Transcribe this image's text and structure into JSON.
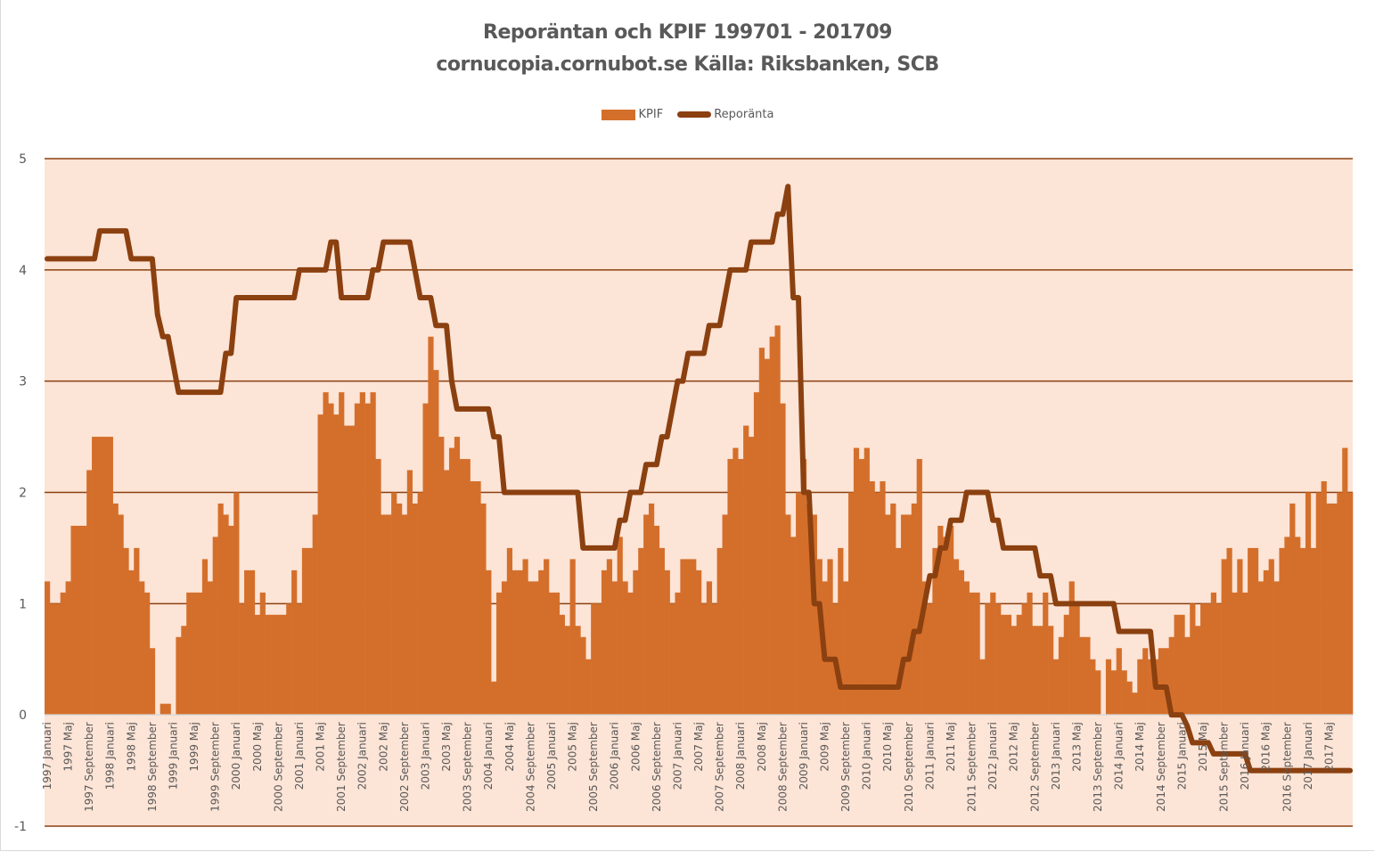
{
  "chart_data": {
    "type": "bar+line",
    "title": "Reporäntan och KPIF 199701 - 201709",
    "subtitle": "cornucopia.cornubot.se Källa: Riksbanken, SCB",
    "legend": [
      "KPIF",
      "Reporänta"
    ],
    "legend_position": "top",
    "xlabel": "",
    "ylabel": "",
    "ylim": [
      -1,
      5
    ],
    "yticks": [
      5,
      4,
      3,
      2,
      1,
      0,
      -1
    ],
    "grid": true,
    "start_month": "1997-01",
    "end_month": "2017-09",
    "colors": {
      "kpif": "#D46F2B",
      "repo": "#8B4010",
      "plot_bg": "#FCE4D6",
      "grid": "#8B4010"
    },
    "xtick_labels": [
      "1997 Januari",
      "1997 Maj",
      "1997 September",
      "1998 Januari",
      "1998 Maj",
      "1998 September",
      "1999 Januari",
      "1999 Maj",
      "1999 September",
      "2000 Januari",
      "2000 Maj",
      "2000 September",
      "2001 Januari",
      "2001 Maj",
      "2001 September",
      "2002 Januari",
      "2002 Maj",
      "2002 September",
      "2003 Januari",
      "2003 Maj",
      "2003 September",
      "2004 Januari",
      "2004 Maj",
      "2004 September",
      "2005 Januari",
      "2005 Maj",
      "2005 September",
      "2006 Januari",
      "2006 Maj",
      "2006 September",
      "2007 Januari",
      "2007 Maj",
      "2007 September",
      "2008 Januari",
      "2008 Maj",
      "2008 September",
      "2009 Januari",
      "2009 Maj",
      "2009 September",
      "2010 Januari",
      "2010 Maj",
      "2010 September",
      "2011 Januari",
      "2011 Maj",
      "2011 September",
      "2012 Januari",
      "2012 Maj",
      "2012 September",
      "2013 Januari",
      "2013 Maj",
      "2013 September",
      "2014 Januari",
      "2014 Maj",
      "2014 September",
      "2015 Januari",
      "2015 Maj",
      "2015 September",
      "2016 Januari",
      "2016 Maj",
      "2016 September",
      "2017 Januari",
      "2017 Maj"
    ],
    "series": [
      {
        "name": "KPIF",
        "type": "bar",
        "values": [
          1.2,
          1.0,
          1.0,
          1.1,
          1.2,
          1.7,
          1.7,
          1.7,
          2.2,
          2.5,
          2.5,
          2.5,
          2.5,
          1.9,
          1.8,
          1.5,
          1.3,
          1.5,
          1.2,
          1.1,
          0.6,
          0.0,
          0.1,
          0.1,
          0.0,
          0.7,
          0.8,
          1.1,
          1.1,
          1.1,
          1.4,
          1.2,
          1.6,
          1.9,
          1.8,
          1.7,
          2.0,
          1.0,
          1.3,
          1.3,
          0.9,
          1.1,
          0.9,
          0.9,
          0.9,
          0.9,
          1.0,
          1.3,
          1.0,
          1.5,
          1.5,
          1.8,
          2.7,
          2.9,
          2.8,
          2.7,
          2.9,
          2.6,
          2.6,
          2.8,
          2.9,
          2.8,
          2.9,
          2.3,
          1.8,
          1.8,
          2.0,
          1.9,
          1.8,
          2.2,
          1.9,
          2.0,
          2.8,
          3.4,
          3.1,
          2.5,
          2.2,
          2.4,
          2.5,
          2.3,
          2.3,
          2.1,
          2.1,
          1.9,
          1.3,
          0.3,
          1.1,
          1.2,
          1.5,
          1.3,
          1.3,
          1.4,
          1.2,
          1.2,
          1.3,
          1.4,
          1.1,
          1.1,
          0.9,
          0.8,
          1.4,
          0.8,
          0.7,
          0.5,
          1.0,
          1.0,
          1.3,
          1.4,
          1.2,
          1.6,
          1.2,
          1.1,
          1.3,
          1.5,
          1.8,
          1.9,
          1.7,
          1.5,
          1.3,
          1.0,
          1.1,
          1.4,
          1.4,
          1.4,
          1.3,
          1.0,
          1.2,
          1.0,
          1.5,
          1.8,
          2.3,
          2.4,
          2.3,
          2.6,
          2.5,
          2.9,
          3.3,
          3.2,
          3.4,
          3.5,
          2.8,
          1.8,
          1.6,
          2.0,
          2.3,
          1.9,
          1.8,
          1.4,
          1.2,
          1.4,
          1.0,
          1.5,
          1.2,
          2.0,
          2.4,
          2.3,
          2.4,
          2.1,
          2.0,
          2.1,
          1.8,
          1.9,
          1.5,
          1.8,
          1.8,
          1.9,
          2.3,
          1.2,
          1.0,
          1.5,
          1.7,
          1.6,
          1.7,
          1.4,
          1.3,
          1.2,
          1.1,
          1.1,
          0.5,
          1.0,
          1.1,
          1.0,
          0.9,
          0.9,
          0.8,
          0.9,
          1.0,
          1.1,
          0.8,
          0.8,
          1.1,
          0.8,
          0.5,
          0.7,
          0.9,
          1.2,
          1.0,
          0.7,
          0.7,
          0.5,
          0.4,
          0.0,
          0.5,
          0.4,
          0.6,
          0.4,
          0.3,
          0.2,
          0.5,
          0.6,
          0.5,
          0.5,
          0.6,
          0.6,
          0.7,
          0.9,
          0.9,
          0.7,
          1.0,
          0.8,
          1.0,
          1.0,
          1.1,
          1.0,
          1.4,
          1.5,
          1.1,
          1.4,
          1.1,
          1.5,
          1.5,
          1.2,
          1.3,
          1.4,
          1.2,
          1.5,
          1.6,
          1.9,
          1.6,
          1.5,
          2.0,
          1.5,
          2.0,
          2.1,
          1.9,
          1.9,
          2.0,
          2.4,
          2.0
        ]
      },
      {
        "name": "Reporänta",
        "type": "line",
        "values": [
          4.1,
          4.1,
          4.1,
          4.1,
          4.1,
          4.1,
          4.1,
          4.1,
          4.1,
          4.1,
          4.35,
          4.35,
          4.35,
          4.35,
          4.35,
          4.35,
          4.1,
          4.1,
          4.1,
          4.1,
          4.1,
          3.6,
          3.4,
          3.4,
          3.15,
          2.9,
          2.9,
          2.9,
          2.9,
          2.9,
          2.9,
          2.9,
          2.9,
          2.9,
          3.25,
          3.25,
          3.75,
          3.75,
          3.75,
          3.75,
          3.75,
          3.75,
          3.75,
          3.75,
          3.75,
          3.75,
          3.75,
          3.75,
          4.0,
          4.0,
          4.0,
          4.0,
          4.0,
          4.0,
          4.25,
          4.25,
          3.75,
          3.75,
          3.75,
          3.75,
          3.75,
          3.75,
          4.0,
          4.0,
          4.25,
          4.25,
          4.25,
          4.25,
          4.25,
          4.25,
          4.0,
          3.75,
          3.75,
          3.75,
          3.5,
          3.5,
          3.5,
          3.0,
          2.75,
          2.75,
          2.75,
          2.75,
          2.75,
          2.75,
          2.75,
          2.5,
          2.5,
          2.0,
          2.0,
          2.0,
          2.0,
          2.0,
          2.0,
          2.0,
          2.0,
          2.0,
          2.0,
          2.0,
          2.0,
          2.0,
          2.0,
          2.0,
          1.5,
          1.5,
          1.5,
          1.5,
          1.5,
          1.5,
          1.5,
          1.75,
          1.75,
          2.0,
          2.0,
          2.0,
          2.25,
          2.25,
          2.25,
          2.5,
          2.5,
          2.75,
          3.0,
          3.0,
          3.25,
          3.25,
          3.25,
          3.25,
          3.5,
          3.5,
          3.5,
          3.75,
          4.0,
          4.0,
          4.0,
          4.0,
          4.25,
          4.25,
          4.25,
          4.25,
          4.25,
          4.5,
          4.5,
          4.75,
          3.75,
          3.75,
          2.0,
          2.0,
          1.0,
          1.0,
          0.5,
          0.5,
          0.5,
          0.25,
          0.25,
          0.25,
          0.25,
          0.25,
          0.25,
          0.25,
          0.25,
          0.25,
          0.25,
          0.25,
          0.25,
          0.5,
          0.5,
          0.75,
          0.75,
          1.0,
          1.25,
          1.25,
          1.5,
          1.5,
          1.75,
          1.75,
          1.75,
          2.0,
          2.0,
          2.0,
          2.0,
          2.0,
          1.75,
          1.75,
          1.5,
          1.5,
          1.5,
          1.5,
          1.5,
          1.5,
          1.5,
          1.25,
          1.25,
          1.25,
          1.0,
          1.0,
          1.0,
          1.0,
          1.0,
          1.0,
          1.0,
          1.0,
          1.0,
          1.0,
          1.0,
          1.0,
          0.75,
          0.75,
          0.75,
          0.75,
          0.75,
          0.75,
          0.75,
          0.25,
          0.25,
          0.25,
          0.0,
          0.0,
          0.0,
          -0.1,
          -0.25,
          -0.25,
          -0.25,
          -0.25,
          -0.35,
          -0.35,
          -0.35,
          -0.35,
          -0.35,
          -0.35,
          -0.35,
          -0.5,
          -0.5,
          -0.5,
          -0.5,
          -0.5,
          -0.5,
          -0.5,
          -0.5,
          -0.5,
          -0.5,
          -0.5,
          -0.5,
          -0.5,
          -0.5,
          -0.5,
          -0.5,
          -0.5,
          -0.5,
          -0.5,
          -0.5
        ]
      }
    ]
  }
}
